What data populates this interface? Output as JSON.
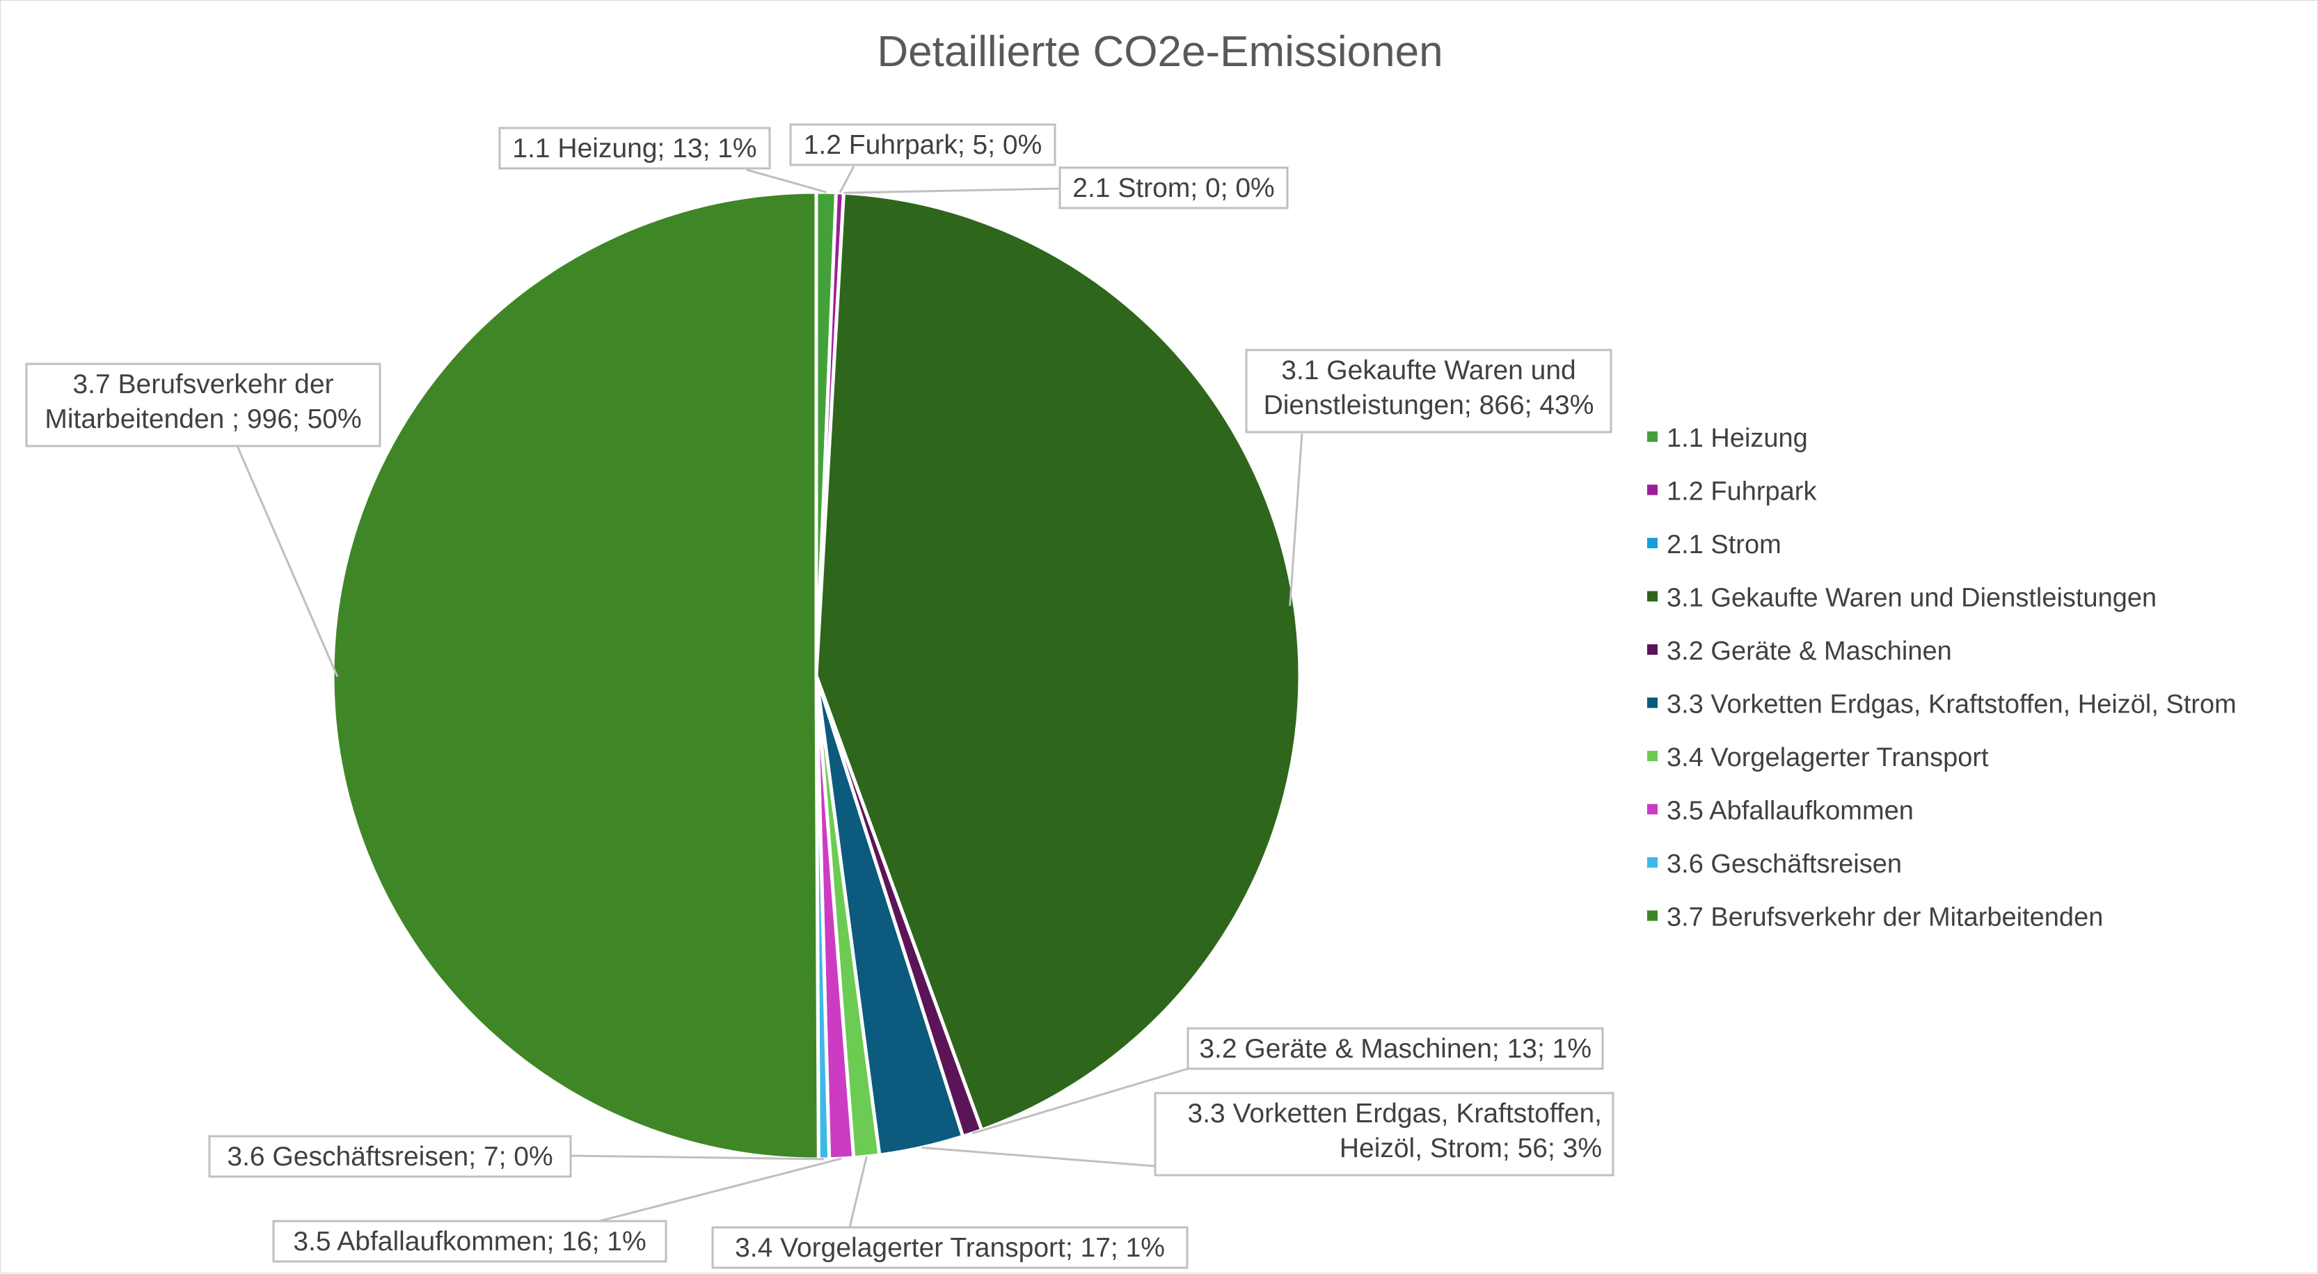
{
  "chart_data": {
    "type": "pie",
    "title": "Detaillierte CO2e-Emissionen",
    "legend_position": "right",
    "slices": [
      {
        "name": "1.1 Heizung",
        "value": 13,
        "percent_label": "1%",
        "color": "#44A13A",
        "label_lines": [
          "1.1 Heizung; 13; 1%"
        ]
      },
      {
        "name": "1.2 Fuhrpark",
        "value": 5,
        "percent_label": "0%",
        "color": "#9E1E99",
        "label_lines": [
          "1.2 Fuhrpark; 5; 0%"
        ]
      },
      {
        "name": "2.1 Strom",
        "value": 0,
        "percent_label": "0%",
        "color": "#1A9DD9",
        "label_lines": [
          "2.1 Strom; 0; 0%"
        ]
      },
      {
        "name": "3.1 Gekaufte Waren und Dienstleistungen",
        "value": 866,
        "percent_label": "43%",
        "color": "#2E661C",
        "label_lines": [
          "3.1 Gekaufte Waren und",
          "Dienstleistungen; 866; 43%"
        ]
      },
      {
        "name": "3.2 Geräte & Maschinen",
        "value": 13,
        "percent_label": "1%",
        "color": "#5C1458",
        "label_lines": [
          "3.2 Geräte & Maschinen; 13; 1%"
        ]
      },
      {
        "name": "3.3 Vorketten Erdgas, Kraftstoffen, Heizöl, Strom",
        "value": 56,
        "percent_label": "3%",
        "color": "#0C5A7D",
        "label_lines": [
          "3.3 Vorketten Erdgas, Kraftstoffen,",
          "Heizöl, Strom; 56; 3%"
        ]
      },
      {
        "name": "3.4 Vorgelagerter Transport",
        "value": 17,
        "percent_label": "1%",
        "color": "#6BCB52",
        "label_lines": [
          "3.4 Vorgelagerter Transport; 17; 1%"
        ]
      },
      {
        "name": "3.5 Abfallaufkommen",
        "value": 16,
        "percent_label": "1%",
        "color": "#CC3CC3",
        "label_lines": [
          "3.5 Abfallaufkommen; 16; 1%"
        ]
      },
      {
        "name": "3.6 Geschäftsreisen",
        "value": 7,
        "percent_label": "0%",
        "color": "#3FB8E6",
        "label_lines": [
          "3.6 Geschäftsreisen; 7; 0%"
        ]
      },
      {
        "name": "3.7 Berufsverkehr der Mitarbeitenden",
        "value": 996,
        "percent_label": "50%",
        "color": "#3F8627",
        "label_lines": [
          "3.7 Berufsverkehr der",
          "Mitarbeitenden ; 996; 50%"
        ]
      }
    ]
  }
}
